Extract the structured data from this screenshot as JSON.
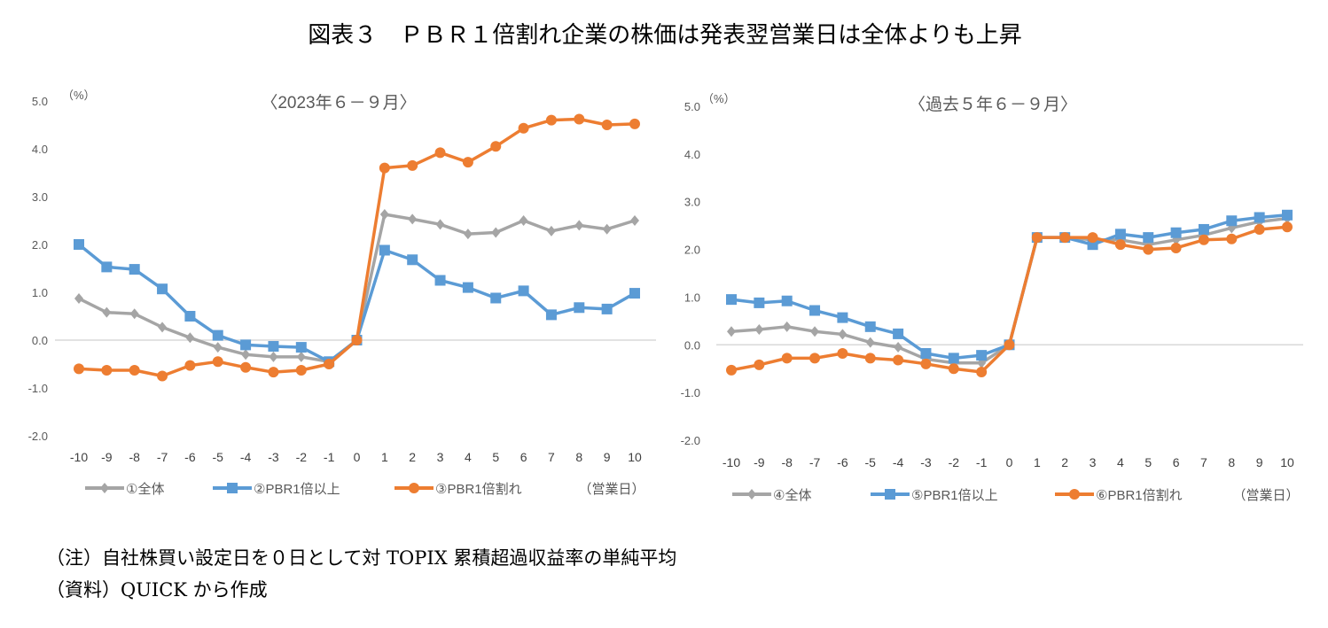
{
  "title": "図表３　ＰＢＲ１倍割れ企業の株価は発表翌営業日は全体よりも上昇",
  "notes": [
    "（注）自社株買い設定日を０日として対 TOPIX 累積超過収益率の単純平均",
    "（資料）QUICK から作成"
  ],
  "colors": {
    "gray": "#a5a5a5",
    "blue": "#5b9bd5",
    "orange": "#ed7d31"
  },
  "chart_data": [
    {
      "type": "line",
      "title": "〈2023年６－９月〉",
      "ylabel": "（%）",
      "xlabel": "（営業日）",
      "ylim": [
        -2.0,
        5.0
      ],
      "yticks": [
        "5.0",
        "4.0",
        "3.0",
        "2.0",
        "1.0",
        "0.0",
        "-1.0",
        "-2.0"
      ],
      "x": [
        -10,
        -9,
        -8,
        -7,
        -6,
        -5,
        -4,
        -3,
        -2,
        -1,
        0,
        1,
        2,
        3,
        4,
        5,
        6,
        7,
        8,
        9,
        10
      ],
      "legend_position": "bottom",
      "series": [
        {
          "name": "①全体",
          "marker": "diamond",
          "color": "#a5a5a5",
          "values": [
            0.87,
            0.58,
            0.55,
            0.27,
            0.05,
            -0.15,
            -0.3,
            -0.35,
            -0.35,
            -0.45,
            0.0,
            2.63,
            2.53,
            2.42,
            2.22,
            2.25,
            2.5,
            2.28,
            2.4,
            2.32,
            2.5
          ]
        },
        {
          "name": "②PBR1倍以上",
          "marker": "square",
          "color": "#5b9bd5",
          "values": [
            2.0,
            1.53,
            1.48,
            1.07,
            0.5,
            0.1,
            -0.1,
            -0.13,
            -0.15,
            -0.45,
            0.0,
            1.88,
            1.68,
            1.25,
            1.1,
            0.88,
            1.03,
            0.53,
            0.68,
            0.65,
            0.98
          ]
        },
        {
          "name": "③PBR1倍割れ",
          "marker": "circle",
          "color": "#ed7d31",
          "values": [
            -0.6,
            -0.63,
            -0.63,
            -0.75,
            -0.53,
            -0.45,
            -0.57,
            -0.67,
            -0.63,
            -0.5,
            0.0,
            3.6,
            3.65,
            3.92,
            3.72,
            4.05,
            4.43,
            4.6,
            4.62,
            4.5,
            4.52
          ]
        }
      ]
    },
    {
      "type": "line",
      "title": "〈過去５年６－９月〉",
      "ylabel": "（%）",
      "xlabel": "（営業日）",
      "ylim": [
        -2.0,
        5.0
      ],
      "yticks": [
        "5.0",
        "4.0",
        "3.0",
        "2.0",
        "1.0",
        "0.0",
        "-1.0",
        "-2.0"
      ],
      "x": [
        -10,
        -9,
        -8,
        -7,
        -6,
        -5,
        -4,
        -3,
        -2,
        -1,
        0,
        1,
        2,
        3,
        4,
        5,
        6,
        7,
        8,
        9,
        10
      ],
      "legend_position": "bottom",
      "series": [
        {
          "name": "④全体",
          "marker": "diamond",
          "color": "#a5a5a5",
          "values": [
            0.28,
            0.32,
            0.38,
            0.28,
            0.22,
            0.05,
            -0.05,
            -0.3,
            -0.38,
            -0.38,
            0.0,
            2.25,
            2.25,
            2.2,
            2.2,
            2.1,
            2.2,
            2.3,
            2.45,
            2.58,
            2.65
          ]
        },
        {
          "name": "⑤PBR1倍以上",
          "marker": "square",
          "color": "#5b9bd5",
          "values": [
            0.95,
            0.88,
            0.92,
            0.72,
            0.57,
            0.38,
            0.23,
            -0.18,
            -0.28,
            -0.22,
            0.0,
            2.25,
            2.25,
            2.1,
            2.32,
            2.25,
            2.35,
            2.42,
            2.6,
            2.67,
            2.72
          ]
        },
        {
          "name": "⑥PBR1倍割れ",
          "marker": "circle",
          "color": "#ed7d31",
          "values": [
            -0.53,
            -0.42,
            -0.28,
            -0.28,
            -0.18,
            -0.28,
            -0.32,
            -0.4,
            -0.5,
            -0.57,
            0.0,
            2.25,
            2.25,
            2.25,
            2.1,
            2.0,
            2.03,
            2.2,
            2.22,
            2.42,
            2.47
          ]
        }
      ]
    }
  ]
}
